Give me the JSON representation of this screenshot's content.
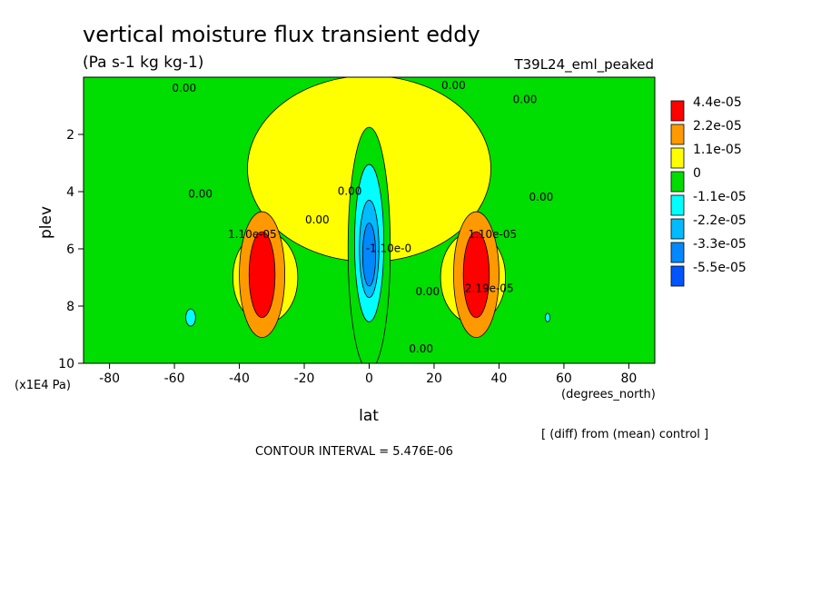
{
  "chart_data": {
    "type": "heatmap",
    "title": "vertical moisture flux transient eddy",
    "subtitle": "(Pa s-1 kg kg-1)",
    "run_label": "T39L24_eml_peaked",
    "xlabel": "lat",
    "x_units": "(degrees_north)",
    "ylabel": "plev",
    "y_units": "(x1E4 Pa)",
    "xlim": [
      -88,
      88
    ],
    "ylim": [
      0,
      10
    ],
    "y_inverted": true,
    "x_ticks": [
      "-80",
      "-60",
      "-40",
      "-20",
      "0",
      "20",
      "40",
      "60",
      "80"
    ],
    "x_tick_values": [
      -80,
      -60,
      -40,
      -20,
      0,
      20,
      40,
      60,
      80
    ],
    "y_ticks": [
      "2",
      "4",
      "6",
      "8",
      "10"
    ],
    "y_tick_values": [
      2,
      4,
      6,
      8,
      10
    ],
    "legend": {
      "placement": "right",
      "entries": [
        {
          "label": "4.4e-05",
          "color": "#ff0000"
        },
        {
          "label": "2.2e-05",
          "color": "#ff9900"
        },
        {
          "label": "1.1e-05",
          "color": "#ffff00"
        },
        {
          "label": "0",
          "color": "#00dd00"
        },
        {
          "label": "-1.1e-05",
          "color": "#00ffff"
        },
        {
          "label": "-2.2e-05",
          "color": "#00bbff"
        },
        {
          "label": "-3.3e-05",
          "color": "#0088ff"
        },
        {
          "label": "-5.5e-05",
          "color": "#0055ff"
        }
      ]
    },
    "background_color": "#00dd00",
    "features": [
      {
        "value_class": "1.1e-05",
        "lat": 0,
        "plev": 3.2,
        "dlat": 75,
        "dplev": 6.5
      },
      {
        "value_class": "1.1e-05",
        "lat": -32,
        "plev": 7.0,
        "dlat": 20,
        "dplev": 3.2
      },
      {
        "value_class": "1.1e-05",
        "lat": 32,
        "plev": 7.0,
        "dlat": 20,
        "dplev": 3.2
      },
      {
        "value_class": "0",
        "lat": 0,
        "plev": 6.0,
        "dlat": 13,
        "dplev": 8.5
      },
      {
        "value_class": "2.2e-05",
        "lat": -33,
        "plev": 6.9,
        "dlat": 14,
        "dplev": 4.4
      },
      {
        "value_class": "2.2e-05",
        "lat": 33,
        "plev": 6.9,
        "dlat": 14,
        "dplev": 4.4
      },
      {
        "value_class": "4.4e-05",
        "lat": -33,
        "plev": 6.9,
        "dlat": 8,
        "dplev": 3.0
      },
      {
        "value_class": "4.4e-05",
        "lat": 33,
        "plev": 6.9,
        "dlat": 8,
        "dplev": 3.0
      },
      {
        "value_class": "-1.1e-05",
        "lat": 0,
        "plev": 5.8,
        "dlat": 9,
        "dplev": 5.5
      },
      {
        "value_class": "-2.2e-05",
        "lat": 0,
        "plev": 6.0,
        "dlat": 6,
        "dplev": 3.4
      },
      {
        "value_class": "-3.3e-05",
        "lat": 0,
        "plev": 6.2,
        "dlat": 4,
        "dplev": 2.2
      },
      {
        "value_class": "-1.1e-05",
        "lat": -55,
        "plev": 8.4,
        "dlat": 3,
        "dplev": 0.6
      },
      {
        "value_class": "-1.1e-05",
        "lat": 55,
        "plev": 8.4,
        "dlat": 1.5,
        "dplev": 0.3
      }
    ],
    "contour_labels": [
      {
        "text": "0.00",
        "lat": -57,
        "plev": 0.4
      },
      {
        "text": "0.00",
        "lat": 26,
        "plev": 0.3
      },
      {
        "text": "0.00",
        "lat": 48,
        "plev": 0.8
      },
      {
        "text": "0.00",
        "lat": -52,
        "plev": 4.1
      },
      {
        "text": "0.00",
        "lat": -16,
        "plev": 5.0
      },
      {
        "text": "0.00",
        "lat": -6,
        "plev": 4.0
      },
      {
        "text": "0.00",
        "lat": 53,
        "plev": 4.2
      },
      {
        "text": "0.00",
        "lat": 18,
        "plev": 7.5
      },
      {
        "text": "0.00",
        "lat": 16,
        "plev": 9.5
      },
      {
        "text": "1.10e-05",
        "lat": -36,
        "plev": 5.5
      },
      {
        "text": "1.10e-05",
        "lat": 38,
        "plev": 5.5
      },
      {
        "text": "-1.10e-0",
        "lat": 6,
        "plev": 6.0
      },
      {
        "text": "2.19e-05",
        "lat": 37,
        "plev": 7.4
      }
    ],
    "annotations": [
      "[ (diff) from (mean) control ]",
      "CONTOUR INTERVAL = 5.476E-06"
    ]
  }
}
